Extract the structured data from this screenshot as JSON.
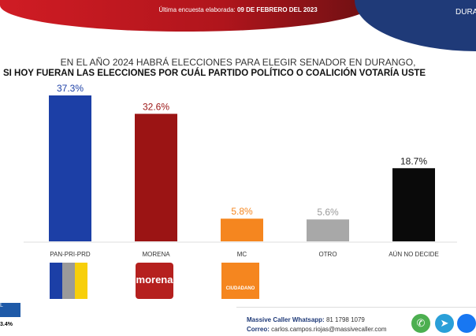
{
  "header": {
    "last_survey_label": "Última encuesta elaborada:",
    "last_survey_date": "09 DE FEBRERO DEL 2023",
    "region": "DURA"
  },
  "chart_data": {
    "type": "bar",
    "title": "EN EL AÑO 2024 HABRÁ ELECCIONES PARA ELEGIR SENADOR EN DURANGO,",
    "subtitle": "SI HOY FUERAN LAS ELECCIONES POR CUÁL PARTIDO POLÍTICO O COALICIÓN  VOTARÍA USTE",
    "categories": [
      "PAN-PRI-PRD",
      "MORENA",
      "MC",
      "OTRO",
      "AÚN NO DECIDE"
    ],
    "values": [
      37.3,
      32.6,
      5.8,
      5.6,
      18.7
    ],
    "data_labels": [
      "37.3%",
      "32.6%",
      "5.8%",
      "5.6%",
      "18.7%"
    ],
    "colors": [
      "#1c3fa6",
      "#9b1414",
      "#f5861f",
      "#a8a8a8",
      "#0a0a0a"
    ],
    "label_colors": [
      "#1c3fa6",
      "#9b1414",
      "#f5861f",
      "#999999",
      "#222222"
    ],
    "ylim": [
      0,
      40
    ],
    "grid": false
  },
  "logos": {
    "morena": "morena",
    "mc": "CIUDADANO"
  },
  "side": {
    "label": "L",
    "value": "3.4%"
  },
  "footer": {
    "whatsapp_label": "Massive Caller Whatsapp:",
    "whatsapp": "81 1798 1079",
    "email_label": "Correo:",
    "email": "carlos.campos.riojas@massivecaller.com"
  }
}
